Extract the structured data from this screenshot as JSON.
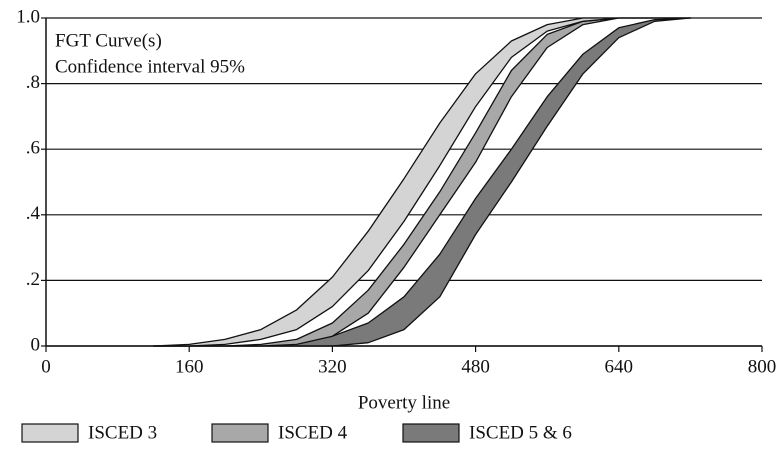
{
  "chart_data": {
    "type": "band",
    "annotations": [
      "FGT Curve(s)",
      "Confidence interval 95%"
    ],
    "x_label": "Poverty line",
    "x": [
      120,
      160,
      200,
      240,
      280,
      320,
      360,
      400,
      440,
      480,
      520,
      560,
      600,
      640,
      680,
      720
    ],
    "series": [
      {
        "name": "ISCED 3",
        "color": "#d4d4d4",
        "upper": [
          0,
          0.005,
          0.02,
          0.05,
          0.11,
          0.21,
          0.35,
          0.51,
          0.68,
          0.83,
          0.93,
          0.98,
          1,
          1,
          1,
          1
        ],
        "lower": [
          0,
          0,
          0.005,
          0.02,
          0.05,
          0.12,
          0.23,
          0.38,
          0.55,
          0.73,
          0.88,
          0.96,
          0.99,
          1,
          1,
          1
        ]
      },
      {
        "name": "ISCED 4",
        "color": "#a8a8a8",
        "upper": [
          0,
          0,
          0,
          0.005,
          0.02,
          0.07,
          0.17,
          0.31,
          0.47,
          0.65,
          0.84,
          0.95,
          0.99,
          1,
          1,
          1
        ],
        "lower": [
          0,
          0,
          0,
          0,
          0.005,
          0.03,
          0.1,
          0.24,
          0.4,
          0.56,
          0.76,
          0.91,
          0.98,
          1,
          1,
          1
        ]
      },
      {
        "name": "ISCED 5 & 6",
        "color": "#7a7a7a",
        "upper": [
          0,
          0,
          0,
          0,
          0.01,
          0.03,
          0.07,
          0.15,
          0.28,
          0.45,
          0.6,
          0.76,
          0.89,
          0.97,
          0.995,
          1
        ],
        "lower": [
          0,
          0,
          0,
          0,
          0,
          0,
          0.01,
          0.05,
          0.15,
          0.34,
          0.5,
          0.67,
          0.83,
          0.94,
          0.99,
          1
        ]
      }
    ],
    "xlim": [
      0,
      800
    ],
    "xticks": [
      0,
      160,
      320,
      480,
      640,
      800
    ],
    "ylim": [
      0,
      1
    ],
    "yticks": [
      0,
      {
        "value": 0.2,
        "label": ".2"
      },
      {
        "value": 0.4,
        "label": ".4"
      },
      {
        "value": 0.6,
        "label": ".6"
      },
      {
        "value": 0.8,
        "label": ".8"
      },
      {
        "value": 1,
        "label": "1.0"
      }
    ],
    "grid": true
  }
}
